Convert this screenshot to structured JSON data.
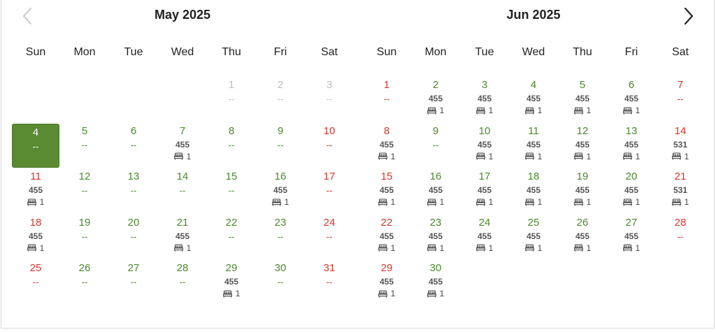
{
  "nav": {
    "prev_icon": "chevron-left-icon",
    "next_icon": "chevron-right-icon"
  },
  "weekdays": [
    "Sun",
    "Mon",
    "Tue",
    "Wed",
    "Thu",
    "Fri",
    "Sat"
  ],
  "colors": {
    "available": "#4a8a2a",
    "weekend": "#d9362b",
    "disabled": "#bdbdbd",
    "selected_bg": "#5a8a32"
  },
  "months": [
    {
      "title": "May 2025",
      "lead_blanks": 4,
      "days": [
        {
          "day": "1",
          "status": "disabled",
          "price": "",
          "rooms": ""
        },
        {
          "day": "2",
          "status": "disabled",
          "price": "",
          "rooms": ""
        },
        {
          "day": "3",
          "status": "disabled",
          "price": "",
          "rooms": ""
        },
        {
          "day": "4",
          "status": "selected",
          "price": "",
          "rooms": ""
        },
        {
          "day": "5",
          "status": "available",
          "price": "",
          "rooms": ""
        },
        {
          "day": "6",
          "status": "available",
          "price": "",
          "rooms": ""
        },
        {
          "day": "7",
          "status": "available",
          "price": "455",
          "rooms": "1"
        },
        {
          "day": "8",
          "status": "available",
          "price": "",
          "rooms": ""
        },
        {
          "day": "9",
          "status": "available",
          "price": "",
          "rooms": ""
        },
        {
          "day": "10",
          "status": "weekend",
          "price": "",
          "rooms": ""
        },
        {
          "day": "11",
          "status": "weekend",
          "price": "455",
          "rooms": "1"
        },
        {
          "day": "12",
          "status": "available",
          "price": "",
          "rooms": ""
        },
        {
          "day": "13",
          "status": "available",
          "price": "",
          "rooms": ""
        },
        {
          "day": "14",
          "status": "available",
          "price": "",
          "rooms": ""
        },
        {
          "day": "15",
          "status": "available",
          "price": "",
          "rooms": ""
        },
        {
          "day": "16",
          "status": "available",
          "price": "455",
          "rooms": "1"
        },
        {
          "day": "17",
          "status": "weekend",
          "price": "",
          "rooms": ""
        },
        {
          "day": "18",
          "status": "weekend",
          "price": "455",
          "rooms": "1"
        },
        {
          "day": "19",
          "status": "available",
          "price": "",
          "rooms": ""
        },
        {
          "day": "20",
          "status": "available",
          "price": "",
          "rooms": ""
        },
        {
          "day": "21",
          "status": "available",
          "price": "455",
          "rooms": "1"
        },
        {
          "day": "22",
          "status": "available",
          "price": "",
          "rooms": ""
        },
        {
          "day": "23",
          "status": "available",
          "price": "",
          "rooms": ""
        },
        {
          "day": "24",
          "status": "weekend",
          "price": "",
          "rooms": ""
        },
        {
          "day": "25",
          "status": "weekend",
          "price": "",
          "rooms": ""
        },
        {
          "day": "26",
          "status": "available",
          "price": "",
          "rooms": ""
        },
        {
          "day": "27",
          "status": "available",
          "price": "",
          "rooms": ""
        },
        {
          "day": "28",
          "status": "available",
          "price": "",
          "rooms": ""
        },
        {
          "day": "29",
          "status": "available",
          "price": "455",
          "rooms": "1"
        },
        {
          "day": "30",
          "status": "available",
          "price": "",
          "rooms": ""
        },
        {
          "day": "31",
          "status": "weekend",
          "price": "",
          "rooms": ""
        }
      ]
    },
    {
      "title": "Jun 2025",
      "lead_blanks": 0,
      "days": [
        {
          "day": "1",
          "status": "weekend",
          "price": "",
          "rooms": ""
        },
        {
          "day": "2",
          "status": "available",
          "price": "455",
          "rooms": "1"
        },
        {
          "day": "3",
          "status": "available",
          "price": "455",
          "rooms": "1"
        },
        {
          "day": "4",
          "status": "available",
          "price": "455",
          "rooms": "1"
        },
        {
          "day": "5",
          "status": "available",
          "price": "455",
          "rooms": "1"
        },
        {
          "day": "6",
          "status": "available",
          "price": "455",
          "rooms": "1"
        },
        {
          "day": "7",
          "status": "weekend",
          "price": "",
          "rooms": ""
        },
        {
          "day": "8",
          "status": "weekend",
          "price": "455",
          "rooms": "1"
        },
        {
          "day": "9",
          "status": "available",
          "price": "",
          "rooms": ""
        },
        {
          "day": "10",
          "status": "available",
          "price": "455",
          "rooms": "1"
        },
        {
          "day": "11",
          "status": "available",
          "price": "455",
          "rooms": "1"
        },
        {
          "day": "12",
          "status": "available",
          "price": "455",
          "rooms": "1"
        },
        {
          "day": "13",
          "status": "available",
          "price": "455",
          "rooms": "1"
        },
        {
          "day": "14",
          "status": "weekend",
          "price": "531",
          "rooms": "1"
        },
        {
          "day": "15",
          "status": "weekend",
          "price": "455",
          "rooms": "1"
        },
        {
          "day": "16",
          "status": "available",
          "price": "455",
          "rooms": "1"
        },
        {
          "day": "17",
          "status": "available",
          "price": "455",
          "rooms": "1"
        },
        {
          "day": "18",
          "status": "available",
          "price": "455",
          "rooms": "1"
        },
        {
          "day": "19",
          "status": "available",
          "price": "455",
          "rooms": "1"
        },
        {
          "day": "20",
          "status": "available",
          "price": "455",
          "rooms": "1"
        },
        {
          "day": "21",
          "status": "weekend",
          "price": "531",
          "rooms": "1"
        },
        {
          "day": "22",
          "status": "weekend",
          "price": "455",
          "rooms": "1"
        },
        {
          "day": "23",
          "status": "available",
          "price": "455",
          "rooms": "1"
        },
        {
          "day": "24",
          "status": "available",
          "price": "455",
          "rooms": "1"
        },
        {
          "day": "25",
          "status": "available",
          "price": "455",
          "rooms": "1"
        },
        {
          "day": "26",
          "status": "available",
          "price": "455",
          "rooms": "1"
        },
        {
          "day": "27",
          "status": "available",
          "price": "455",
          "rooms": "1"
        },
        {
          "day": "28",
          "status": "weekend",
          "price": "",
          "rooms": ""
        },
        {
          "day": "29",
          "status": "weekend",
          "price": "455",
          "rooms": "1"
        },
        {
          "day": "30",
          "status": "available",
          "price": "455",
          "rooms": "1"
        }
      ]
    }
  ],
  "empty_marker": "--",
  "room_icon": "bed-icon"
}
